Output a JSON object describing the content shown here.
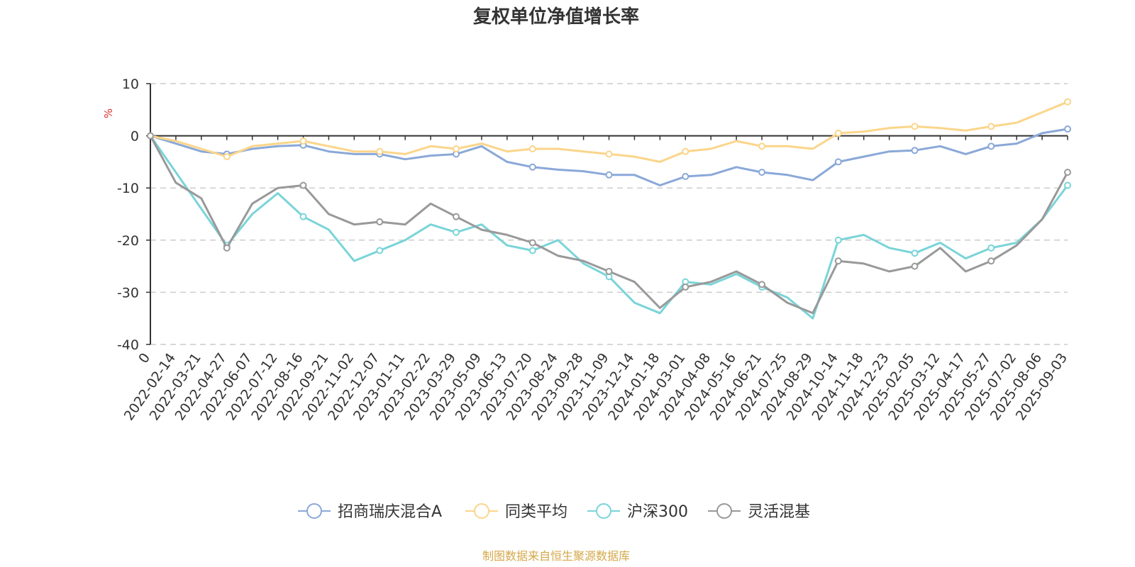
{
  "chart_data": {
    "type": "line",
    "title": "复权单位净值增长率",
    "ylabel": "%",
    "ylim": [
      -40,
      10
    ],
    "yticks": [
      10,
      0,
      -10,
      -20,
      -30,
      -40
    ],
    "grid": true,
    "legend_position": "bottom",
    "x_tick_labels": [
      "0",
      "2022-02-14",
      "2022-03-21",
      "2022-04-27",
      "2022-06-07",
      "2022-07-12",
      "2022-08-16",
      "2022-09-21",
      "2022-11-02",
      "2022-12-07",
      "2023-01-11",
      "2023-02-22",
      "2023-03-29",
      "2023-05-09",
      "2023-06-13",
      "2023-07-20",
      "2023-08-24",
      "2023-09-28",
      "2023-11-09",
      "2023-12-14",
      "2024-01-18",
      "2024-03-01",
      "2024-04-08",
      "2024-05-16",
      "2024-06-21",
      "2024-07-25",
      "2024-08-29",
      "2024-10-14",
      "2024-11-18",
      "2024-12-23",
      "2025-02-05",
      "2025-03-12",
      "2025-04-17",
      "2025-05-27",
      "2025-07-02",
      "2025-08-06",
      "2025-09-03"
    ],
    "series": [
      {
        "name": "招商瑞庆混合A",
        "color": "#8aa8d8",
        "values": [
          0,
          -1.5,
          -3.0,
          -3.5,
          -2.5,
          -2.0,
          -1.8,
          -3.0,
          -3.5,
          -3.5,
          -4.5,
          -3.8,
          -3.5,
          -2.0,
          -5.0,
          -6.0,
          -6.5,
          -6.8,
          -7.5,
          -7.5,
          -9.5,
          -7.8,
          -7.5,
          -6.0,
          -7.0,
          -7.5,
          -8.5,
          -5.0,
          -4.0,
          -3.0,
          -2.8,
          -2.0,
          -3.5,
          -2.0,
          -1.5,
          0.5,
          1.3
        ]
      },
      {
        "name": "同类平均",
        "color": "#fbd58a",
        "values": [
          0,
          -1.0,
          -2.5,
          -4.0,
          -2.0,
          -1.5,
          -1.0,
          -2.0,
          -3.0,
          -3.0,
          -3.5,
          -2.0,
          -2.5,
          -1.5,
          -3.0,
          -2.5,
          -2.5,
          -3.0,
          -3.5,
          -4.0,
          -5.0,
          -3.0,
          -2.5,
          -1.0,
          -2.0,
          -2.0,
          -2.5,
          0.5,
          0.8,
          1.5,
          1.8,
          1.5,
          1.0,
          1.8,
          2.5,
          4.5,
          6.5
        ]
      },
      {
        "name": "沪深300",
        "color": "#7ad4d8",
        "values": [
          0,
          -7.0,
          -14.0,
          -21.0,
          -15.0,
          -11.0,
          -15.5,
          -18.0,
          -24.0,
          -22.0,
          -20.0,
          -17.0,
          -18.5,
          -17.0,
          -21.0,
          -22.0,
          -20.0,
          -24.5,
          -27.0,
          -32.0,
          -34.0,
          -28.0,
          -28.5,
          -26.5,
          -29.0,
          -31.0,
          -35.0,
          -20.0,
          -19.0,
          -21.5,
          -22.5,
          -20.5,
          -23.5,
          -21.5,
          -20.5,
          -16.0,
          -9.5
        ]
      },
      {
        "name": "灵活混基",
        "color": "#999999",
        "values": [
          0,
          -9.0,
          -12.0,
          -21.5,
          -13.0,
          -10.0,
          -9.5,
          -15.0,
          -17.0,
          -16.5,
          -17.0,
          -13.0,
          -15.5,
          -18.0,
          -19.0,
          -20.5,
          -23.0,
          -24.0,
          -26.0,
          -28.0,
          -33.0,
          -29.0,
          -28.0,
          -26.0,
          -28.5,
          -32.0,
          -34.0,
          -24.0,
          -24.5,
          -26.0,
          -25.0,
          -21.5,
          -26.0,
          -24.0,
          -21.0,
          -16.0,
          -7.0
        ]
      }
    ]
  },
  "source_text": "制图数据来自恒生聚源数据库",
  "colors": {
    "axis": "#333333",
    "grid": "#cccccc",
    "source": "#d4a84a"
  }
}
